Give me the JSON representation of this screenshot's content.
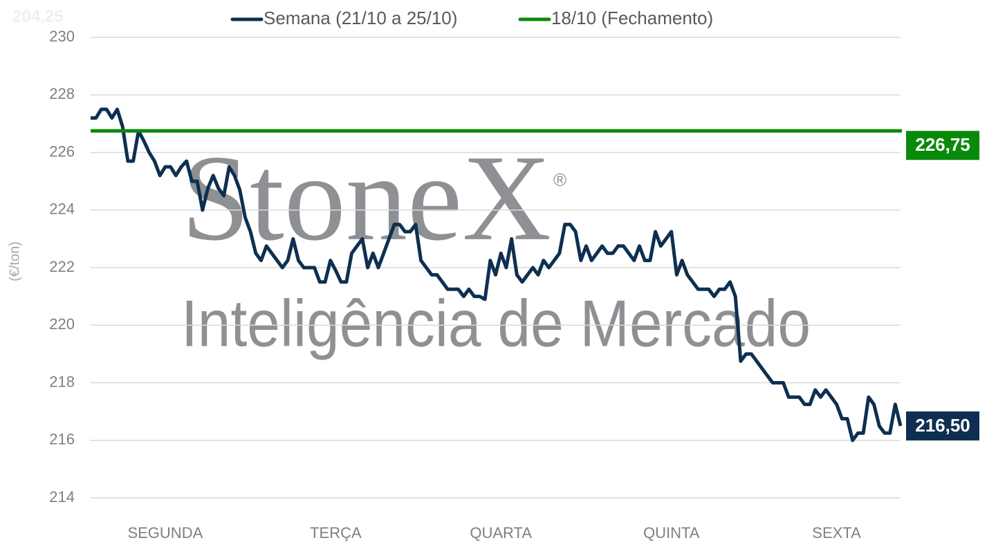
{
  "chart_data": {
    "type": "line",
    "ghost_label": "204,25",
    "y_label": "(€/ton)",
    "watermark": {
      "brand": "StoneX",
      "registered": "®",
      "tagline": "Inteligência de Mercado"
    },
    "ylim": [
      214,
      230
    ],
    "yticks": [
      214,
      216,
      218,
      220,
      222,
      224,
      226,
      228,
      230
    ],
    "grid": true,
    "legend": "top",
    "categories": [
      null,
      null,
      null,
      null,
      null,
      null,
      null,
      null,
      null,
      null,
      null,
      null,
      null,
      null,
      "SEGUNDA",
      null,
      null,
      null,
      null,
      null,
      null,
      null,
      null,
      null,
      null,
      null,
      null,
      null,
      null,
      null,
      null,
      null,
      null,
      null,
      null,
      null,
      null,
      null,
      null,
      null,
      null,
      null,
      null,
      null,
      null,
      null,
      "TERÇA",
      null,
      null,
      null,
      null,
      null,
      null,
      null,
      null,
      null,
      null,
      null,
      null,
      null,
      null,
      null,
      null,
      null,
      null,
      null,
      null,
      null,
      null,
      null,
      null,
      null,
      null,
      null,
      null,
      null,
      null,
      "QUARTA",
      null,
      null,
      null,
      null,
      null,
      null,
      null,
      null,
      null,
      null,
      null,
      null,
      null,
      null,
      null,
      null,
      null,
      null,
      null,
      null,
      null,
      null,
      null,
      null,
      null,
      null,
      null,
      null,
      null,
      null,
      null,
      "QUINTA",
      null,
      null,
      null,
      null,
      null,
      null,
      null,
      null,
      null,
      null,
      null,
      null,
      null,
      null,
      null,
      null,
      null,
      null,
      null,
      null,
      null,
      null,
      null,
      null,
      null,
      null,
      null,
      null,
      null,
      null,
      "SEXTA",
      null,
      null,
      null,
      null,
      null,
      null,
      null,
      null,
      null,
      null,
      null,
      null
    ],
    "series": [
      {
        "name": "Semana (21/10 a 25/10)",
        "color": "#0e2f52",
        "end_label": "216,50",
        "values": [
          227.2,
          227.2,
          227.5,
          227.5,
          227.2,
          227.5,
          226.9,
          225.7,
          225.7,
          226.75,
          226.4,
          226.0,
          225.7,
          225.2,
          225.5,
          225.5,
          225.2,
          225.5,
          225.7,
          225.0,
          225.0,
          224.0,
          224.75,
          225.2,
          224.75,
          224.5,
          225.5,
          225.2,
          224.7,
          223.75,
          223.25,
          222.5,
          222.25,
          222.75,
          222.5,
          222.25,
          222.0,
          222.25,
          223.0,
          222.25,
          222.0,
          222.0,
          222.0,
          221.5,
          221.5,
          222.25,
          221.9,
          221.5,
          221.5,
          222.5,
          222.75,
          223.0,
          222.0,
          222.5,
          222.0,
          222.5,
          223.0,
          223.5,
          223.5,
          223.25,
          223.25,
          223.5,
          222.25,
          222.0,
          221.75,
          221.75,
          221.5,
          221.25,
          221.25,
          221.25,
          221.0,
          221.25,
          221.0,
          221.0,
          220.9,
          222.25,
          221.75,
          222.5,
          222.0,
          223.0,
          221.75,
          221.5,
          221.75,
          222.0,
          221.75,
          222.25,
          222.0,
          222.25,
          222.5,
          223.5,
          223.5,
          223.25,
          222.25,
          222.75,
          222.25,
          222.5,
          222.75,
          222.5,
          222.5,
          222.75,
          222.75,
          222.5,
          222.25,
          222.75,
          222.25,
          222.25,
          223.25,
          222.75,
          223.0,
          223.25,
          221.75,
          222.25,
          221.75,
          221.5,
          221.25,
          221.25,
          221.25,
          221.0,
          221.25,
          221.25,
          221.5,
          221.0,
          218.75,
          219.0,
          219.0,
          218.75,
          218.5,
          218.25,
          218.0,
          218.0,
          218.0,
          217.5,
          217.5,
          217.5,
          217.25,
          217.25,
          217.75,
          217.5,
          217.75,
          217.5,
          217.25,
          216.75,
          216.75,
          216.0,
          216.25,
          216.25,
          217.5,
          217.25,
          216.5,
          216.25,
          216.25,
          217.25,
          216.5
        ]
      },
      {
        "name": "18/10 (Fechamento)",
        "color": "#0a8a0a",
        "value": 226.75,
        "end_label": "226,75"
      }
    ]
  }
}
